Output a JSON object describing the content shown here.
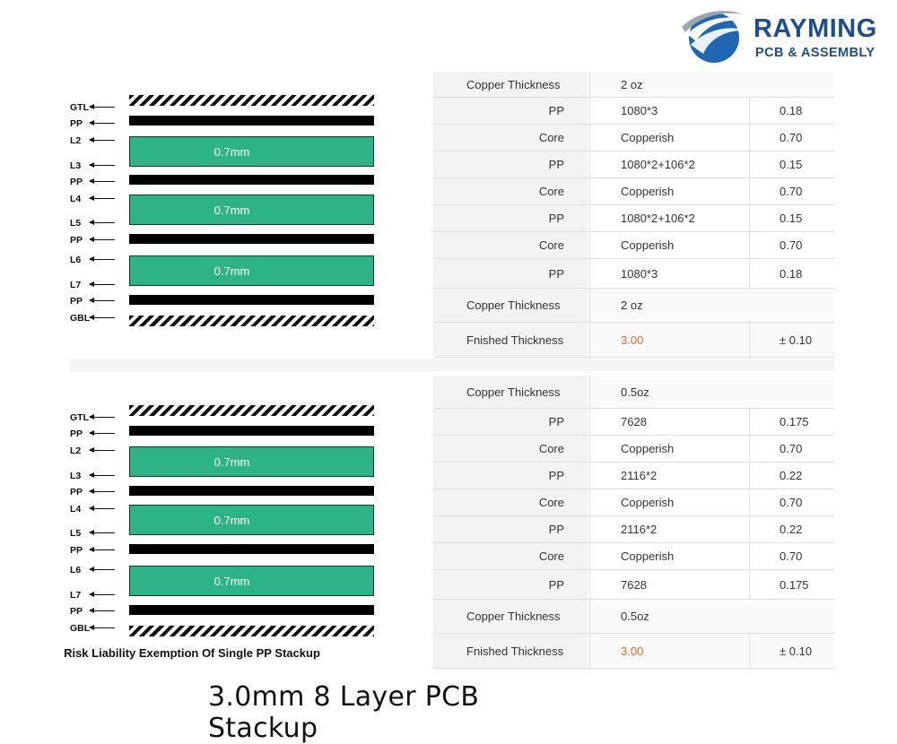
{
  "brand": {
    "name": "RAYMING",
    "tagline": "PCB & ASSEMBLY",
    "color": "#1e4e8c"
  },
  "colors": {
    "core": "#2eb287",
    "prepreg": "#000000",
    "highlight": "#e8641d"
  },
  "stackup_top": {
    "layer_labels": [
      "GTL",
      "PP",
      "L2",
      "L3",
      "PP",
      "L4",
      "L5",
      "PP",
      "L6",
      "L7",
      "PP",
      "GBL"
    ],
    "core_labels": [
      "0.7mm",
      "0.7mm",
      "0.7mm"
    ],
    "table": [
      {
        "name": "Copper Thickness",
        "material": "2 oz",
        "value": ""
      },
      {
        "name": "PP",
        "material": "1080*3",
        "value": "0.18"
      },
      {
        "name": "Core",
        "material": "Copperish",
        "value": "0.70"
      },
      {
        "name": "PP",
        "material": "1080*2+106*2",
        "value": "0.15"
      },
      {
        "name": "Core",
        "material": "Copperish",
        "value": "0.70"
      },
      {
        "name": "PP",
        "material": "1080*2+106*2",
        "value": "0.15"
      },
      {
        "name": "Core",
        "material": "Copperish",
        "value": "0.70"
      },
      {
        "name": "PP",
        "material": "1080*3",
        "value": "0.18"
      },
      {
        "name": "Copper Thickness",
        "material": "2 oz",
        "value": ""
      },
      {
        "name": "Fnished Thickness",
        "material": "3.00",
        "value": "± 0.10"
      }
    ]
  },
  "stackup_bottom": {
    "layer_labels": [
      "GTL",
      "PP",
      "L2",
      "L3",
      "PP",
      "L4",
      "L5",
      "PP",
      "L6",
      "L7",
      "PP",
      "GBL"
    ],
    "core_labels": [
      "0.7mm",
      "0.7mm",
      "0.7mm"
    ],
    "caption": "Risk Liability Exemption Of Single PP Stackup",
    "table": [
      {
        "name": "Copper Thickness",
        "material": "0.5oz",
        "value": ""
      },
      {
        "name": "PP",
        "material": "7628",
        "value": "0.175"
      },
      {
        "name": "Core",
        "material": "Copperish",
        "value": "0.70"
      },
      {
        "name": "PP",
        "material": "2116*2",
        "value": "0.22"
      },
      {
        "name": "Core",
        "material": "Copperish",
        "value": "0.70"
      },
      {
        "name": "PP",
        "material": "2116*2",
        "value": "0.22"
      },
      {
        "name": "Core",
        "material": "Copperish",
        "value": "0.70"
      },
      {
        "name": "PP",
        "material": "7628",
        "value": "0.175"
      },
      {
        "name": "Copper Thickness",
        "material": "0.5oz",
        "value": ""
      },
      {
        "name": "Fnished Thickness",
        "material": "3.00",
        "value": "± 0.10"
      }
    ]
  },
  "page_title": "3.0mm 8 Layer PCB Stackup"
}
